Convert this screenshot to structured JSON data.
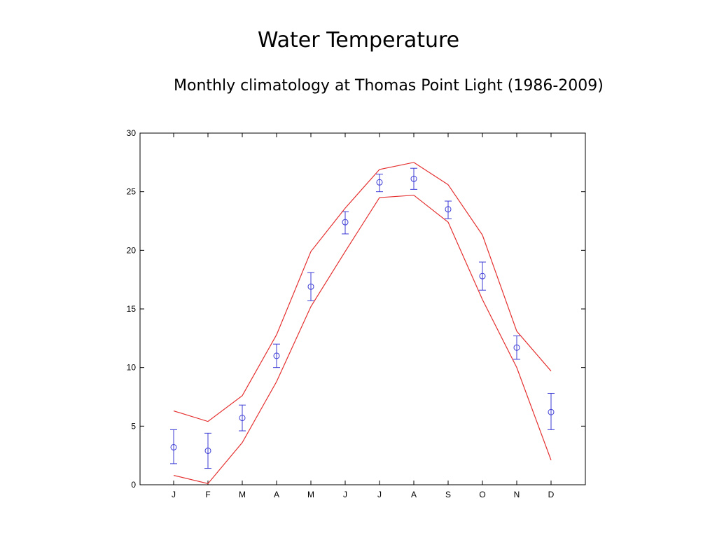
{
  "slide": {
    "title": "Water Temperature",
    "subtitle": "Monthly climatology at Thomas Point Light (1986-2009)"
  },
  "chart_data": {
    "type": "line",
    "title": "",
    "xlabel": "",
    "ylabel": "",
    "categories": [
      "J",
      "F",
      "M",
      "A",
      "M",
      "J",
      "J",
      "A",
      "S",
      "O",
      "N",
      "D"
    ],
    "ylim": [
      0,
      30
    ],
    "yticks": [
      0,
      5,
      10,
      15,
      20,
      25,
      30
    ],
    "grid": false,
    "legend": "none",
    "series": [
      {
        "kind": "errorbar",
        "color": "#3b3bd6",
        "values": [
          3.2,
          2.9,
          5.7,
          11.0,
          16.9,
          22.4,
          25.8,
          26.1,
          23.5,
          17.8,
          11.7,
          6.2
        ],
        "lower": [
          1.8,
          1.4,
          4.6,
          10.0,
          15.7,
          21.4,
          25.0,
          25.2,
          22.7,
          16.6,
          10.7,
          4.7
        ],
        "upper": [
          4.7,
          4.4,
          6.8,
          12.0,
          18.1,
          23.3,
          26.5,
          27.0,
          24.2,
          19.0,
          12.7,
          7.8
        ]
      },
      {
        "kind": "line",
        "color": "#e53030",
        "values": [
          6.3,
          5.4,
          7.6,
          12.8,
          19.9,
          23.6,
          26.9,
          27.5,
          25.6,
          21.3,
          13.1,
          9.7
        ]
      },
      {
        "kind": "line",
        "color": "#e53030",
        "values": [
          0.8,
          0.1,
          3.6,
          8.8,
          15.2,
          19.9,
          24.5,
          24.7,
          22.4,
          15.8,
          10.0,
          2.1
        ]
      }
    ]
  }
}
